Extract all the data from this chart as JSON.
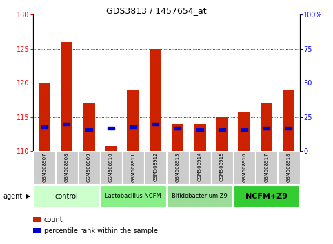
{
  "title": "GDS3813 / 1457654_at",
  "samples": [
    "GSM508907",
    "GSM508908",
    "GSM508909",
    "GSM508910",
    "GSM508911",
    "GSM508912",
    "GSM508913",
    "GSM508914",
    "GSM508915",
    "GSM508916",
    "GSM508917",
    "GSM508918"
  ],
  "count_values": [
    120,
    126,
    117,
    110.8,
    119,
    125,
    114,
    114,
    115,
    115.8,
    117,
    119
  ],
  "percentile_values": [
    18,
    20,
    16,
    17,
    18,
    20,
    17,
    16,
    16,
    16,
    17,
    17
  ],
  "count_base": 110,
  "ylim_left": [
    110,
    130
  ],
  "ylim_right": [
    0,
    100
  ],
  "yticks_left": [
    110,
    115,
    120,
    125,
    130
  ],
  "yticks_right": [
    0,
    25,
    50,
    75,
    100
  ],
  "ytick_labels_right": [
    "0",
    "25",
    "50",
    "75",
    "100%"
  ],
  "bar_color": "#cc2200",
  "percentile_color": "#0000cc",
  "groups": [
    {
      "label": "control",
      "start": 0,
      "end": 3,
      "color": "#ccffcc",
      "fontsize": 7,
      "bold": false
    },
    {
      "label": "Lactobacillus NCFM",
      "start": 3,
      "end": 6,
      "color": "#88ee88",
      "fontsize": 6,
      "bold": false
    },
    {
      "label": "Bifidobacterium Z9",
      "start": 6,
      "end": 9,
      "color": "#99dd99",
      "fontsize": 6,
      "bold": false
    },
    {
      "label": "NCFM+Z9",
      "start": 9,
      "end": 12,
      "color": "#33cc33",
      "fontsize": 8,
      "bold": true
    }
  ],
  "legend_count_label": "count",
  "legend_percentile_label": "percentile rank within the sample",
  "agent_label": "agent",
  "bar_width": 0.55,
  "tick_bg_color": "#cccccc",
  "grid_yticks": [
    115,
    120,
    125
  ]
}
